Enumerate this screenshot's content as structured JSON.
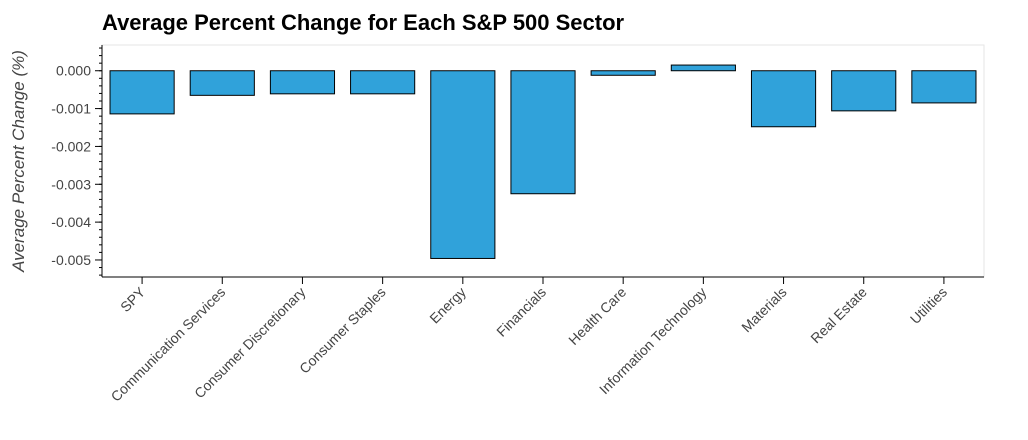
{
  "chart_data": {
    "type": "bar",
    "title": "Average Percent Change for Each S&P 500 Sector",
    "xlabel": "",
    "ylabel": "Average Percent Change (%)",
    "categories": [
      "SPY",
      "Communication Services",
      "Consumer Discretionary",
      "Consumer Staples",
      "Energy",
      "Financials",
      "Health Care",
      "Information Technology",
      "Materials",
      "Real Estate",
      "Utilities"
    ],
    "values": [
      -0.00114,
      -0.00065,
      -0.00061,
      -0.00061,
      -0.00496,
      -0.00325,
      -0.00012,
      0.00015,
      -0.00148,
      -0.00106,
      -0.00085
    ],
    "ylim": [
      -0.00545,
      0.00068
    ],
    "yticks": [
      0.0,
      -0.001,
      -0.002,
      -0.003,
      -0.004,
      -0.005
    ],
    "ytick_labels": [
      "0.000",
      "-0.001",
      "-0.002",
      "-0.003",
      "-0.004",
      "-0.005"
    ],
    "bar_color": "#30a2da",
    "grid": false,
    "legend": "none"
  }
}
